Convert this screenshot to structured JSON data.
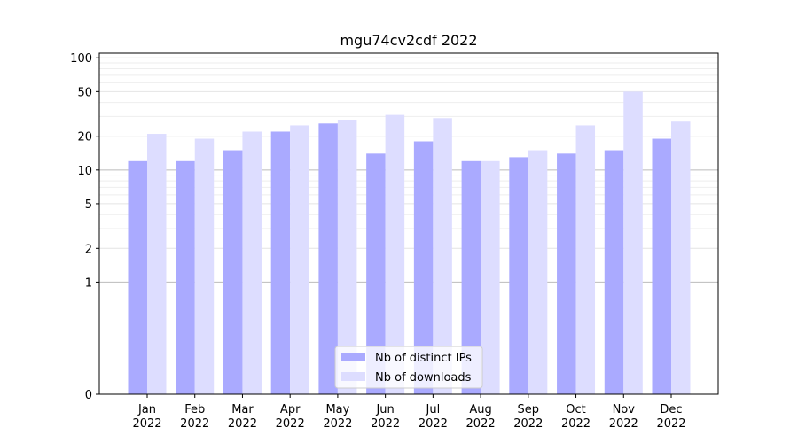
{
  "chart_data": {
    "type": "bar",
    "title": "mgu74cv2cdf 2022",
    "xlabel": "",
    "ylabel": "",
    "y_scale": "symlog",
    "ylim": [
      0,
      110
    ],
    "y_ticks": [
      0,
      1,
      2,
      5,
      10,
      20,
      50,
      100
    ],
    "y_tick_labels": [
      "0",
      "1",
      "2",
      "5",
      "10",
      "20",
      "50",
      "100"
    ],
    "categories": [
      [
        "Jan",
        "2022"
      ],
      [
        "Feb",
        "2022"
      ],
      [
        "Mar",
        "2022"
      ],
      [
        "Apr",
        "2022"
      ],
      [
        "May",
        "2022"
      ],
      [
        "Jun",
        "2022"
      ],
      [
        "Jul",
        "2022"
      ],
      [
        "Aug",
        "2022"
      ],
      [
        "Sep",
        "2022"
      ],
      [
        "Oct",
        "2022"
      ],
      [
        "Nov",
        "2022"
      ],
      [
        "Dec",
        "2022"
      ]
    ],
    "series": [
      {
        "name": "Nb of distinct IPs",
        "color": "#aaaaff",
        "values": [
          12,
          12,
          15,
          22,
          26,
          14,
          18,
          12,
          13,
          14,
          15,
          19
        ]
      },
      {
        "name": "Nb of downloads",
        "color": "#ddddff",
        "values": [
          21,
          19,
          22,
          25,
          28,
          31,
          29,
          12,
          15,
          25,
          50,
          27
        ]
      }
    ],
    "grid": true,
    "legend_position": "bottom-center"
  }
}
